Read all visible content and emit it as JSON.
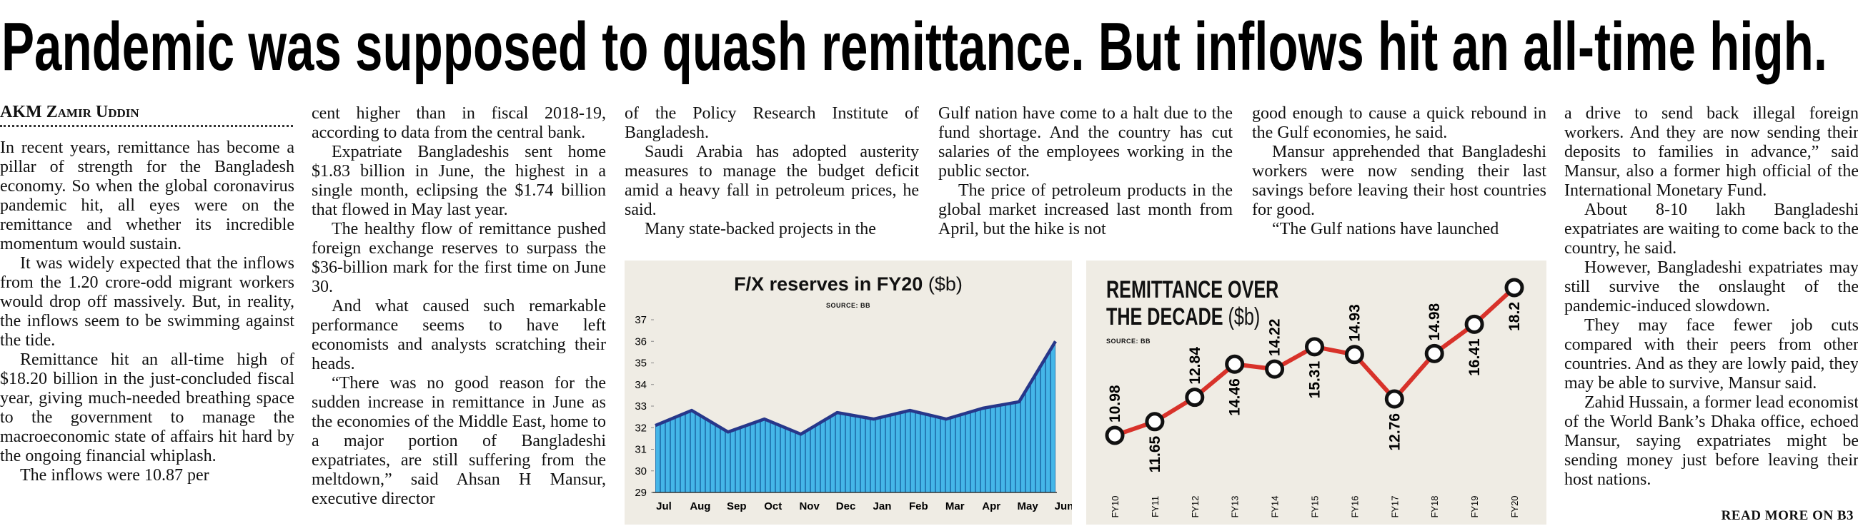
{
  "header": {
    "title": "Pandemic was supposed to quash remittance. But inflows hit an all-time high."
  },
  "byline": "AKM Zamir Uddin",
  "columns": [
    [
      "In recent years, remittance has become a pillar of strength for the Bangladesh economy. So when the global coronavirus pandemic hit, all eyes were on the remittance and whether its incredible momentum would sustain.",
      "It was widely expected that the inflows from the 1.20 crore-odd migrant workers would drop off massively. But, in reality, the inflows seem to be swimming against the tide.",
      "Remittance hit an all-time high of $18.20 billion in the just-concluded fiscal year, giving much-needed breathing space to the government to manage the macroeconomic state of affairs hit hard by the ongoing financial whiplash.",
      "The inflows were 10.87 per"
    ],
    [
      "cent higher than in fiscal 2018-19, according to data from the central bank.",
      "Expatriate Bangladeshis sent home $1.83 billion in June, the highest in a single month, eclipsing the $1.74 billion that flowed in May last year.",
      "The healthy flow of remittance pushed foreign exchange reserves to surpass the $36-billion mark for the first time on June 30.",
      "And what caused such remarkable performance seems to have left economists and analysts scratching their heads.",
      "“There was no good reason for the sudden increase in remittance in June as the economies of the Middle East, home to a major portion of Bangladeshi expatriates, are still suffering from the meltdown,” said Ahsan H Mansur, executive director"
    ],
    [
      "of the Policy Research Institute of Bangladesh.",
      "Saudi Arabia has adopted austerity measures to manage the budget deficit amid a heavy fall in petroleum prices, he said.",
      "Many state-backed projects in the"
    ],
    [
      "Gulf nation have come to a halt due to the fund shortage. And the country has cut salaries of the employees working in the public sector.",
      "The price of petroleum products in the global market increased last month from April, but the hike is not"
    ],
    [
      "good enough to cause a quick rebound in the Gulf economies, he said.",
      "Mansur apprehended that Bangladeshi workers were now sending their last savings before leaving their host countries for good.",
      "“The Gulf nations have launched"
    ],
    [
      "a drive to send back illegal foreign workers. And they are now sending their deposits to families in advance,” said Mansur, also a former high official of the International Monetary Fund.",
      "About 8-10 lakh Bangladeshi expatriates are waiting to come back to the country, he said.",
      "However, Bangladeshi expatriates may still survive the onslaught of the pandemic-induced slowdown.",
      "They may face fewer job cuts compared with their peers from other countries. And as they are lowly paid, they may be able to survive, Mansur said.",
      "Zahid Hussain, a former lead economist of the World Bank’s Dhaka office, echoed Mansur, saying expatriates might be sending money just before leaving their host nations."
    ]
  ],
  "read_more": "READ MORE ON B3",
  "chart_data": [
    {
      "type": "area",
      "title": "F/X reserves in FY20",
      "unit": "($b)",
      "source": "SOURCE: BB",
      "categories": [
        "Jul",
        "Aug",
        "Sep",
        "Oct",
        "Nov",
        "Dec",
        "Jan",
        "Feb",
        "Mar",
        "Apr",
        "May",
        "Jun"
      ],
      "values": [
        32.1,
        32.8,
        31.8,
        32.4,
        31.7,
        32.7,
        32.4,
        32.8,
        32.4,
        32.9,
        33.2,
        36.0
      ],
      "color": "#45b6e8",
      "line_color": "#27378a",
      "ylim": [
        29,
        37
      ],
      "yticks": [
        29,
        30,
        31,
        32,
        33,
        34,
        35,
        36,
        37
      ]
    },
    {
      "type": "line",
      "title": "REMITTANCE OVER THE DECADE",
      "unit": "($b)",
      "source": "SOURCE: BB",
      "categories": [
        "FY10",
        "FY11",
        "FY12",
        "FY13",
        "FY14",
        "FY15",
        "FY16",
        "FY17",
        "FY18",
        "FY19",
        "FY20"
      ],
      "values": [
        10.98,
        11.65,
        12.84,
        14.46,
        14.22,
        15.31,
        14.93,
        12.76,
        14.98,
        16.41,
        18.2
      ],
      "color": "#d8322a"
    }
  ]
}
